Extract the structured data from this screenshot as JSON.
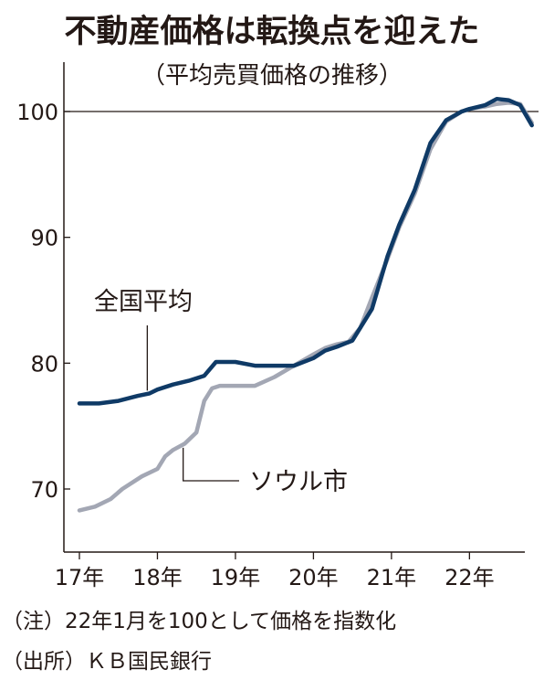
{
  "title": "不動産価格は転換点を迎えた",
  "subtitle": "（平均売買価格の推移）",
  "notes": {
    "note1": "（注）22年1月を100として価格を指数化",
    "note2": "（出所）ＫＢ国民銀行"
  },
  "colors": {
    "national": "#0f3a66",
    "seoul": "#a3a7b4",
    "axis": "#231815"
  },
  "chart_data": {
    "type": "line",
    "title": "不動産価格は転換点を迎えた",
    "subtitle": "（平均売買価格の推移）",
    "x_ticks": [
      "17年",
      "18年",
      "19年",
      "20年",
      "21年",
      "22年"
    ],
    "y_ticks": [
      70,
      80,
      90,
      100
    ],
    "xlim": [
      2017.0,
      2022.85
    ],
    "ylim": [
      67,
      106
    ],
    "reference_line": 100,
    "grid": false,
    "series": [
      {
        "name": "全国平均",
        "x": [
          2017.0,
          2017.25,
          2017.5,
          2017.75,
          2017.9,
          2018.0,
          2018.2,
          2018.4,
          2018.6,
          2018.75,
          2019.0,
          2019.25,
          2019.5,
          2019.75,
          2020.0,
          2020.15,
          2020.3,
          2020.5,
          2020.75,
          2020.95,
          2021.1,
          2021.3,
          2021.5,
          2021.7,
          2021.9,
          2022.0,
          2022.2,
          2022.35,
          2022.5,
          2022.65,
          2022.8
        ],
        "values": [
          76.8,
          76.8,
          77.0,
          77.4,
          77.6,
          77.9,
          78.3,
          78.6,
          79.0,
          80.1,
          80.1,
          79.8,
          79.8,
          79.8,
          80.4,
          81.0,
          81.3,
          81.8,
          84.3,
          88.5,
          91.0,
          93.8,
          97.5,
          99.3,
          100.0,
          100.2,
          100.5,
          101.0,
          100.9,
          100.5,
          98.9
        ]
      },
      {
        "name": "ソウル市",
        "x": [
          2017.0,
          2017.2,
          2017.4,
          2017.55,
          2017.8,
          2018.0,
          2018.1,
          2018.2,
          2018.35,
          2018.5,
          2018.6,
          2018.7,
          2018.8,
          2019.0,
          2019.25,
          2019.5,
          2019.75,
          2020.0,
          2020.15,
          2020.3,
          2020.45,
          2020.6,
          2020.75,
          2020.95,
          2021.1,
          2021.3,
          2021.5,
          2021.7,
          2021.9,
          2022.0,
          2022.2,
          2022.35,
          2022.5,
          2022.65,
          2022.8
        ],
        "values": [
          68.3,
          68.6,
          69.2,
          70.0,
          71.0,
          71.6,
          72.6,
          73.1,
          73.6,
          74.5,
          77.0,
          78.0,
          78.2,
          78.2,
          78.2,
          78.9,
          79.8,
          80.7,
          81.2,
          81.5,
          81.7,
          82.8,
          85.2,
          88.3,
          90.8,
          93.5,
          97.0,
          99.2,
          100.0,
          100.2,
          100.4,
          100.6,
          100.7,
          100.6,
          99.1
        ]
      }
    ]
  }
}
